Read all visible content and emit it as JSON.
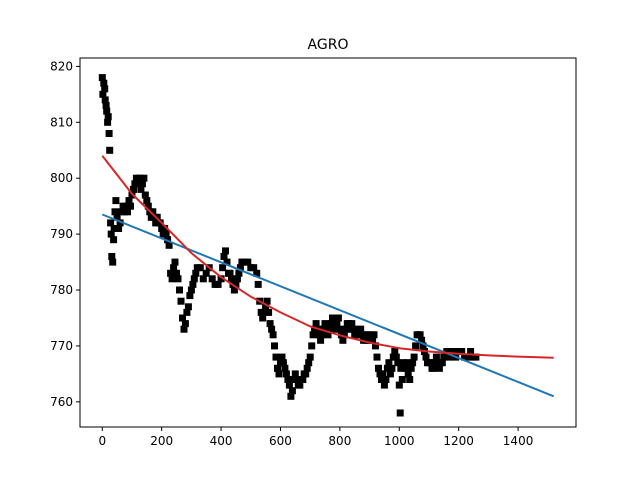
{
  "chart_data": {
    "type": "scatter",
    "title": "AGRO",
    "xlabel": "",
    "ylabel": "",
    "xlim": [
      -75,
      1595
    ],
    "ylim": [
      755.5,
      821.5
    ],
    "xticks": [
      0,
      200,
      400,
      600,
      800,
      1000,
      1200,
      1400
    ],
    "yticks": [
      760,
      770,
      780,
      790,
      800,
      810,
      820
    ],
    "grid": false,
    "colors": {
      "points": "#000000",
      "linear_fit": "#1f77b4",
      "curve_fit": "#d62728"
    },
    "series": [
      {
        "kind": "scatter",
        "marker": "square",
        "points": [
          [
            0,
            818
          ],
          [
            2,
            815
          ],
          [
            5,
            817
          ],
          [
            8,
            816
          ],
          [
            10,
            814
          ],
          [
            13,
            813
          ],
          [
            15,
            812
          ],
          [
            18,
            810
          ],
          [
            20,
            811
          ],
          [
            23,
            808
          ],
          [
            25,
            805
          ],
          [
            28,
            792
          ],
          [
            30,
            790
          ],
          [
            32,
            786
          ],
          [
            35,
            785
          ],
          [
            38,
            789
          ],
          [
            40,
            791
          ],
          [
            43,
            794
          ],
          [
            46,
            796
          ],
          [
            50,
            793
          ],
          [
            55,
            791
          ],
          [
            60,
            792
          ],
          [
            65,
            794
          ],
          [
            70,
            795
          ],
          [
            75,
            794
          ],
          [
            80,
            795
          ],
          [
            85,
            794
          ],
          [
            90,
            796
          ],
          [
            95,
            795
          ],
          [
            100,
            797
          ],
          [
            105,
            798
          ],
          [
            110,
            799
          ],
          [
            115,
            800
          ],
          [
            120,
            799
          ],
          [
            125,
            800
          ],
          [
            130,
            798
          ],
          [
            135,
            799
          ],
          [
            140,
            800
          ],
          [
            145,
            797
          ],
          [
            150,
            796
          ],
          [
            155,
            795
          ],
          [
            160,
            794
          ],
          [
            165,
            793
          ],
          [
            170,
            794
          ],
          [
            175,
            793
          ],
          [
            180,
            792
          ],
          [
            185,
            793
          ],
          [
            190,
            792
          ],
          [
            195,
            792
          ],
          [
            200,
            791
          ],
          [
            205,
            790
          ],
          [
            210,
            791
          ],
          [
            215,
            790
          ],
          [
            220,
            789
          ],
          [
            225,
            788
          ],
          [
            230,
            783
          ],
          [
            235,
            782
          ],
          [
            240,
            784
          ],
          [
            245,
            785
          ],
          [
            250,
            783
          ],
          [
            255,
            782
          ],
          [
            260,
            780
          ],
          [
            265,
            778
          ],
          [
            270,
            775
          ],
          [
            275,
            773
          ],
          [
            280,
            774
          ],
          [
            285,
            776
          ],
          [
            290,
            777
          ],
          [
            295,
            779
          ],
          [
            300,
            780
          ],
          [
            305,
            781
          ],
          [
            310,
            782
          ],
          [
            315,
            783
          ],
          [
            320,
            784
          ],
          [
            330,
            784
          ],
          [
            340,
            782
          ],
          [
            350,
            783
          ],
          [
            360,
            784
          ],
          [
            370,
            782
          ],
          [
            380,
            781
          ],
          [
            390,
            781
          ],
          [
            400,
            782
          ],
          [
            405,
            784
          ],
          [
            410,
            786
          ],
          [
            415,
            787
          ],
          [
            420,
            785
          ],
          [
            425,
            783
          ],
          [
            430,
            783
          ],
          [
            435,
            782
          ],
          [
            440,
            781
          ],
          [
            445,
            780
          ],
          [
            450,
            781
          ],
          [
            455,
            782
          ],
          [
            460,
            783
          ],
          [
            465,
            784
          ],
          [
            470,
            785
          ],
          [
            480,
            785
          ],
          [
            490,
            785
          ],
          [
            500,
            784
          ],
          [
            510,
            784
          ],
          [
            520,
            783
          ],
          [
            525,
            781
          ],
          [
            530,
            778
          ],
          [
            535,
            776
          ],
          [
            540,
            775
          ],
          [
            545,
            776
          ],
          [
            550,
            777
          ],
          [
            555,
            778
          ],
          [
            560,
            776
          ],
          [
            565,
            774
          ],
          [
            570,
            773
          ],
          [
            575,
            772
          ],
          [
            580,
            770
          ],
          [
            585,
            768
          ],
          [
            590,
            766
          ],
          [
            595,
            765
          ],
          [
            600,
            767
          ],
          [
            605,
            768
          ],
          [
            610,
            767
          ],
          [
            615,
            766
          ],
          [
            620,
            765
          ],
          [
            625,
            764
          ],
          [
            630,
            763
          ],
          [
            635,
            761
          ],
          [
            640,
            762
          ],
          [
            645,
            764
          ],
          [
            650,
            765
          ],
          [
            655,
            764
          ],
          [
            660,
            763
          ],
          [
            665,
            763
          ],
          [
            670,
            764
          ],
          [
            675,
            764
          ],
          [
            680,
            765
          ],
          [
            685,
            765
          ],
          [
            690,
            766
          ],
          [
            695,
            767
          ],
          [
            700,
            768
          ],
          [
            705,
            770
          ],
          [
            710,
            772
          ],
          [
            715,
            773
          ],
          [
            720,
            774
          ],
          [
            725,
            773
          ],
          [
            730,
            772
          ],
          [
            735,
            771
          ],
          [
            740,
            772
          ],
          [
            745,
            773
          ],
          [
            750,
            774
          ],
          [
            755,
            773
          ],
          [
            760,
            772
          ],
          [
            765,
            773
          ],
          [
            770,
            774
          ],
          [
            775,
            775
          ],
          [
            780,
            774
          ],
          [
            785,
            773
          ],
          [
            790,
            774
          ],
          [
            795,
            775
          ],
          [
            800,
            773
          ],
          [
            805,
            772
          ],
          [
            810,
            771
          ],
          [
            815,
            772
          ],
          [
            820,
            773
          ],
          [
            825,
            774
          ],
          [
            830,
            774
          ],
          [
            835,
            773
          ],
          [
            840,
            774
          ],
          [
            845,
            773
          ],
          [
            850,
            772
          ],
          [
            855,
            772
          ],
          [
            860,
            773
          ],
          [
            865,
            772
          ],
          [
            870,
            773
          ],
          [
            875,
            772
          ],
          [
            880,
            771
          ],
          [
            885,
            772
          ],
          [
            890,
            771
          ],
          [
            895,
            772
          ],
          [
            900,
            771
          ],
          [
            905,
            772
          ],
          [
            910,
            771
          ],
          [
            915,
            772
          ],
          [
            920,
            770
          ],
          [
            925,
            768
          ],
          [
            930,
            766
          ],
          [
            935,
            765
          ],
          [
            940,
            764
          ],
          [
            945,
            765
          ],
          [
            950,
            763
          ],
          [
            955,
            764
          ],
          [
            960,
            766
          ],
          [
            965,
            767
          ],
          [
            970,
            765
          ],
          [
            975,
            766
          ],
          [
            980,
            768
          ],
          [
            985,
            769
          ],
          [
            990,
            768
          ],
          [
            995,
            767
          ],
          [
            1000,
            763
          ],
          [
            1003,
            758
          ],
          [
            1005,
            766
          ],
          [
            1010,
            764
          ],
          [
            1015,
            767
          ],
          [
            1020,
            766
          ],
          [
            1025,
            767
          ],
          [
            1030,
            765
          ],
          [
            1035,
            764
          ],
          [
            1040,
            766
          ],
          [
            1045,
            767
          ],
          [
            1050,
            768
          ],
          [
            1055,
            770
          ],
          [
            1060,
            772
          ],
          [
            1065,
            772
          ],
          [
            1070,
            772
          ],
          [
            1075,
            771
          ],
          [
            1080,
            770
          ],
          [
            1085,
            769
          ],
          [
            1090,
            768
          ],
          [
            1095,
            767
          ],
          [
            1100,
            767
          ],
          [
            1105,
            767
          ],
          [
            1110,
            766
          ],
          [
            1115,
            766
          ],
          [
            1120,
            767
          ],
          [
            1125,
            768
          ],
          [
            1130,
            767
          ],
          [
            1135,
            766
          ],
          [
            1140,
            767
          ],
          [
            1145,
            767
          ],
          [
            1150,
            768
          ],
          [
            1160,
            769
          ],
          [
            1170,
            768
          ],
          [
            1180,
            769
          ],
          [
            1190,
            768
          ],
          [
            1200,
            769
          ],
          [
            1210,
            769
          ],
          [
            1220,
            768
          ],
          [
            1230,
            768
          ],
          [
            1240,
            769
          ],
          [
            1250,
            768
          ],
          [
            1258,
            768
          ]
        ]
      },
      {
        "kind": "line",
        "role": "linear-fit",
        "x": [
          0,
          1520
        ],
        "y": [
          793.5,
          761.0
        ]
      },
      {
        "kind": "line",
        "role": "curve-fit",
        "x": [
          0,
          100,
          200,
          300,
          400,
          500,
          600,
          700,
          800,
          900,
          1000,
          1100,
          1200,
          1300,
          1400,
          1520
        ],
        "y": [
          804.0,
          797.2,
          792.0,
          786.6,
          782.3,
          778.8,
          776.0,
          773.5,
          771.9,
          770.6,
          769.6,
          769.0,
          768.6,
          768.3,
          768.1,
          767.9
        ]
      }
    ]
  }
}
